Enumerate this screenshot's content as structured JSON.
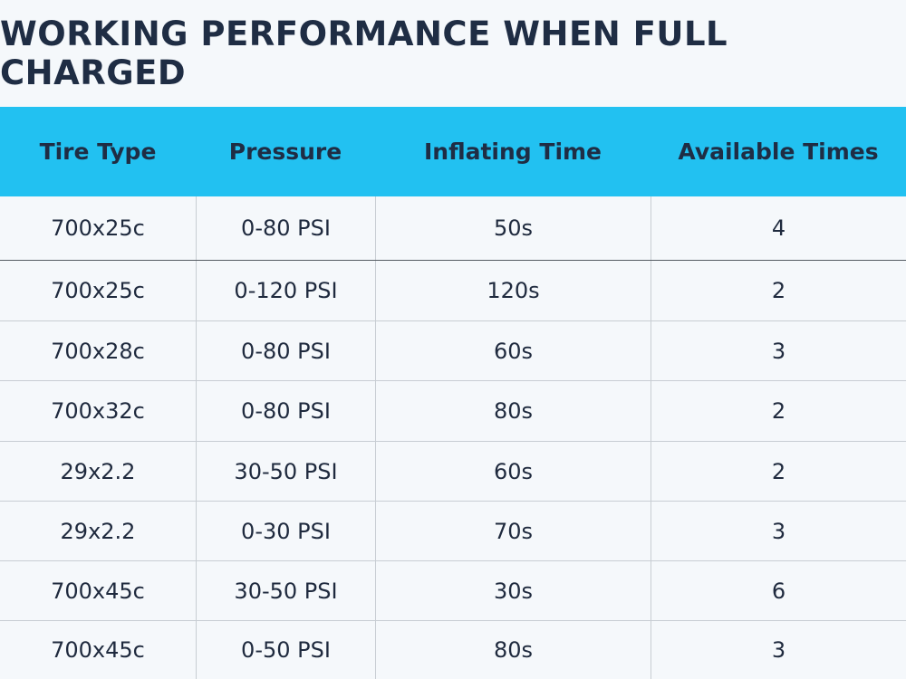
{
  "header": {
    "title": "WORKING PERFORMANCE WHEN FULL CHARGED"
  },
  "table": {
    "columns": [
      "Tire Type",
      "Pressure",
      "Inflating Time",
      "Available Times"
    ],
    "rows": [
      [
        "700x25c",
        "0-80 PSI",
        "50s",
        "4"
      ],
      [
        "700x25c",
        "0-120 PSI",
        "120s",
        "2"
      ],
      [
        "700x28c",
        "0-80 PSI",
        "60s",
        "3"
      ],
      [
        "700x32c",
        "0-80 PSI",
        "80s",
        "2"
      ],
      [
        "29x2.2",
        "30-50 PSI",
        "60s",
        "2"
      ],
      [
        "29x2.2",
        "0-30 PSI",
        "70s",
        "3"
      ],
      [
        "700x45c",
        "30-50 PSI",
        "30s",
        "6"
      ],
      [
        "700x45c",
        "0-50 PSI",
        "80s",
        "3"
      ]
    ]
  }
}
